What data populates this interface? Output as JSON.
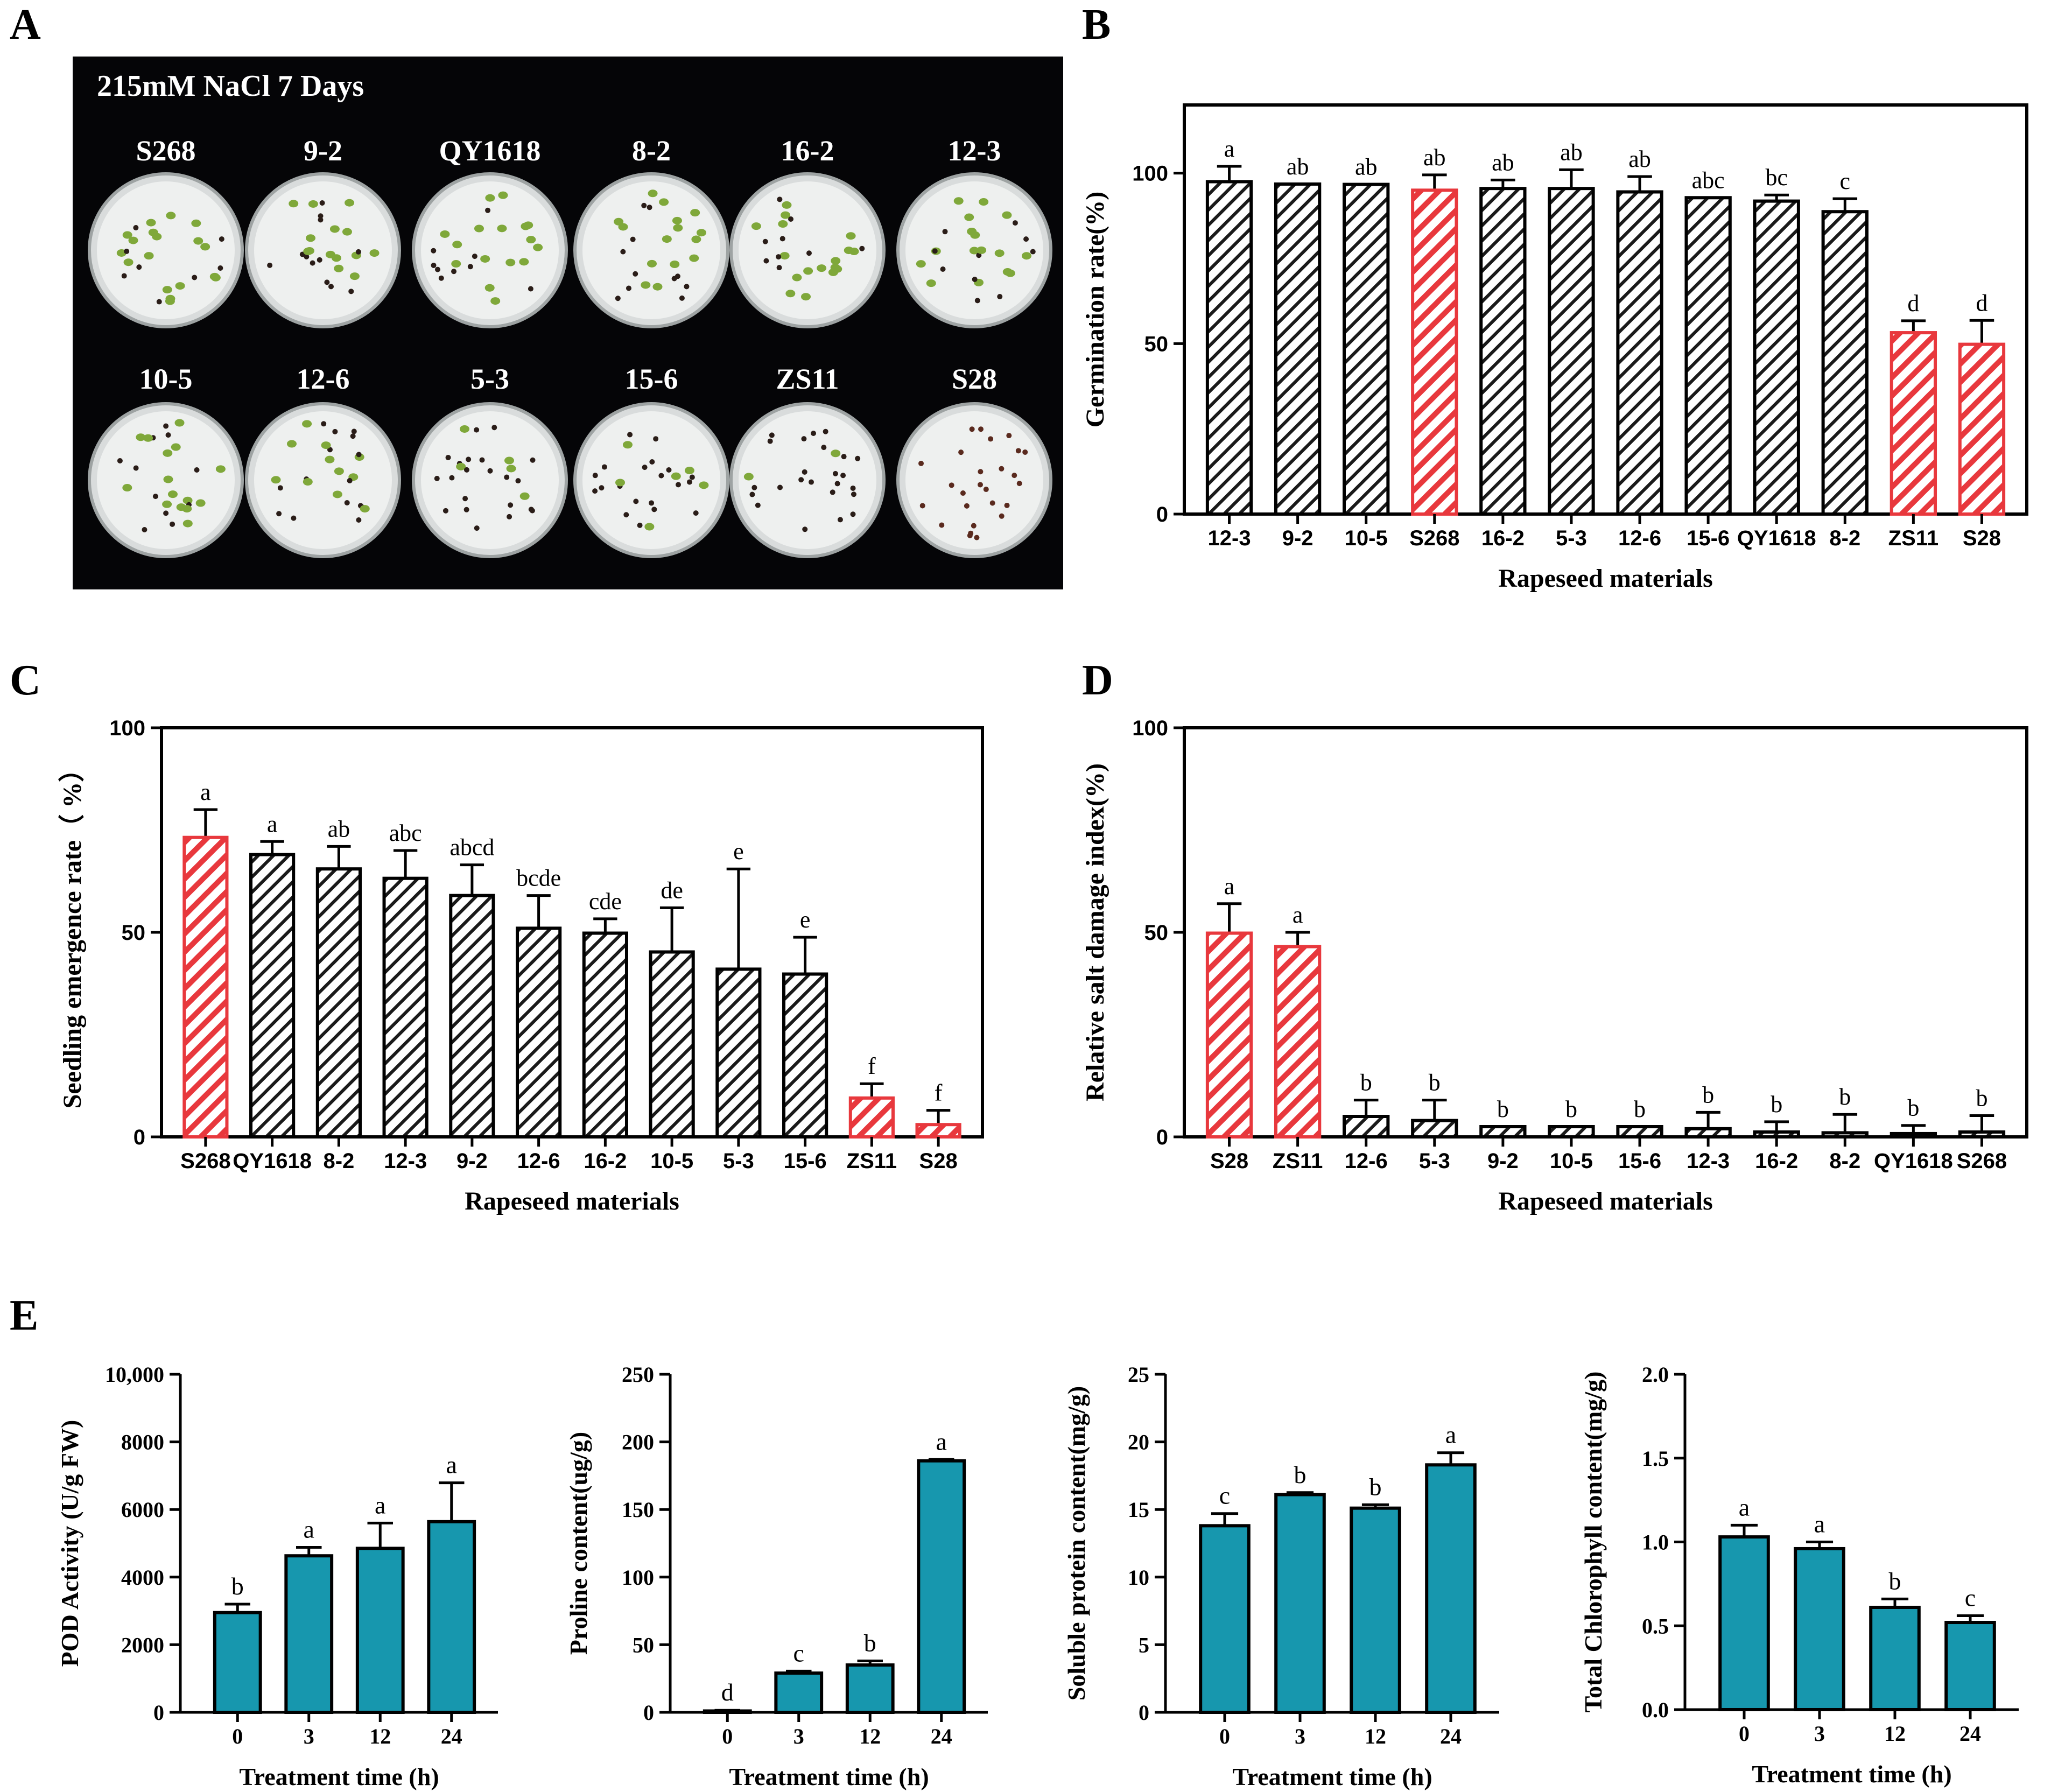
{
  "panel_letters": {
    "a": "A",
    "b": "B",
    "c": "C",
    "d": "D",
    "e": "E"
  },
  "photo": {
    "title": "215mM NaCl 7 Days",
    "row1_labels": [
      "S268",
      "9-2",
      "QY1618",
      "8-2",
      "16-2",
      "12-3"
    ],
    "row2_labels": [
      "10-5",
      "12-6",
      "5-3",
      "15-6",
      "ZS11",
      "S28"
    ],
    "row1_seed_green_fraction": [
      0.6,
      0.55,
      0.55,
      0.5,
      0.55,
      0.5
    ],
    "row2_seed_green_fraction": [
      0.5,
      0.3,
      0.2,
      0.2,
      0.08,
      0.0
    ]
  },
  "colors": {
    "hatch_red": "#e8383d",
    "hatch_black": "#1a1a1a",
    "bar_teal": "#1797ae",
    "photo_bg": "#050507",
    "dish_fill": "#eef0ef"
  },
  "chart_data": [
    {
      "panel": "B",
      "type": "bar",
      "categories": [
        "12-3",
        "9-2",
        "10-5",
        "S268",
        "16-2",
        "5-3",
        "12-6",
        "15-6",
        "QY1618",
        "8-2",
        "ZS11",
        "S28"
      ],
      "values": [
        97.5,
        96.8,
        96.7,
        95.0,
        95.5,
        95.5,
        94.5,
        92.8,
        91.8,
        88.7,
        53.2,
        49.8
      ],
      "errors": [
        4.5,
        0,
        0,
        4.5,
        2.5,
        5.5,
        4.5,
        0,
        1.8,
        3.8,
        3.5,
        7.0
      ],
      "letters": [
        "a",
        "ab",
        "ab",
        "ab",
        "ab",
        "ab",
        "ab",
        "abc",
        "bc",
        "c",
        "d",
        "d"
      ],
      "highlight": [
        false,
        false,
        false,
        true,
        false,
        false,
        false,
        false,
        false,
        false,
        true,
        true
      ],
      "ylabel": "Germination rate(%)",
      "xlabel": "Rapeseed materials",
      "ylim": [
        0,
        120
      ],
      "yticks": [
        0,
        50,
        100
      ]
    },
    {
      "panel": "C",
      "type": "bar",
      "categories": [
        "S268",
        "QY1618",
        "8-2",
        "12-3",
        "9-2",
        "12-6",
        "16-2",
        "10-5",
        "5-3",
        "15-6",
        "ZS11",
        "S28"
      ],
      "values": [
        73.2,
        69.0,
        65.5,
        63.2,
        59.0,
        51.0,
        49.8,
        45.2,
        41.0,
        39.8,
        9.5,
        3.0
      ],
      "errors": [
        6.8,
        3.2,
        5.5,
        6.8,
        7.5,
        8.0,
        3.5,
        10.8,
        24.5,
        9.0,
        3.5,
        3.5
      ],
      "letters": [
        "a",
        "a",
        "ab",
        "abc",
        "abcd",
        "bcde",
        "cde",
        "de",
        "e",
        "e",
        "f",
        "f"
      ],
      "highlight": [
        true,
        false,
        false,
        false,
        false,
        false,
        false,
        false,
        false,
        false,
        true,
        true
      ],
      "ylabel": "Seedling emergence rate（ %）",
      "xlabel": "Rapeseed materials",
      "ylim": [
        0,
        100
      ],
      "yticks": [
        0,
        50,
        100
      ]
    },
    {
      "panel": "D",
      "type": "bar",
      "categories": [
        "S28",
        "ZS11",
        "12-6",
        "5-3",
        "9-2",
        "10-5",
        "15-6",
        "12-3",
        "16-2",
        "8-2",
        "QY1618",
        "S268"
      ],
      "values": [
        49.8,
        46.5,
        5.0,
        4.0,
        2.5,
        2.5,
        2.5,
        2.0,
        1.2,
        1.0,
        0.8,
        1.2
      ],
      "errors": [
        7.2,
        3.5,
        4.0,
        5.0,
        0,
        0,
        0,
        4.0,
        2.5,
        4.5,
        2.0,
        4.0
      ],
      "letters": [
        "a",
        "a",
        "b",
        "b",
        "b",
        "b",
        "b",
        "b",
        "b",
        "b",
        "b",
        "b"
      ],
      "highlight": [
        true,
        true,
        false,
        false,
        false,
        false,
        false,
        false,
        false,
        false,
        false,
        false
      ],
      "ylabel": "Relative salt damage index(%)",
      "xlabel": "Rapeseed materials",
      "ylim": [
        0,
        100
      ],
      "yticks": [
        0,
        50,
        100
      ]
    },
    {
      "panel": "E1",
      "type": "bar",
      "categories": [
        "0",
        "3",
        "12",
        "24"
      ],
      "values": [
        2950,
        4630,
        4850,
        5640
      ],
      "errors": [
        250,
        250,
        750,
        1150
      ],
      "letters": [
        "b",
        "a",
        "a",
        "a"
      ],
      "ylabel": "POD Activity (U/g  FW)",
      "xlabel": "Treatment time (h)",
      "ylim": [
        0,
        10000
      ],
      "yticks": [
        0,
        2000,
        4000,
        6000,
        8000,
        10000
      ],
      "yticklabels": [
        "0",
        "2000",
        "4000",
        "6000",
        "8000",
        "10,000"
      ]
    },
    {
      "panel": "E2",
      "type": "bar",
      "categories": [
        "0",
        "3",
        "12",
        "24"
      ],
      "values": [
        1.0,
        29.0,
        35.0,
        186.0
      ],
      "errors": [
        0.5,
        1.5,
        3.0,
        1.0
      ],
      "letters": [
        "d",
        "c",
        "b",
        "a"
      ],
      "ylabel": "Proline content(ug/g)",
      "xlabel": "Treatment time (h)",
      "ylim": [
        0,
        250
      ],
      "yticks": [
        0,
        50,
        100,
        150,
        200,
        250
      ],
      "yticklabels": [
        "0",
        "50",
        "100",
        "150",
        "200",
        "250"
      ]
    },
    {
      "panel": "E3",
      "type": "bar",
      "categories": [
        "0",
        "3",
        "12",
        "24"
      ],
      "values": [
        13.8,
        16.1,
        15.1,
        18.3
      ],
      "errors": [
        0.9,
        0.15,
        0.25,
        0.9
      ],
      "letters": [
        "c",
        "b",
        "b",
        "a"
      ],
      "ylabel": "Soluble protein content(mg/g)",
      "xlabel": "Treatment time (h)",
      "ylim": [
        0,
        25
      ],
      "yticks": [
        0,
        5,
        10,
        15,
        20,
        25
      ],
      "yticklabels": [
        "0",
        "5",
        "10",
        "15",
        "20",
        "25"
      ]
    },
    {
      "panel": "E4",
      "type": "bar",
      "categories": [
        "0",
        "3",
        "12",
        "24"
      ],
      "values": [
        1.03,
        0.96,
        0.61,
        0.52
      ],
      "errors": [
        0.07,
        0.04,
        0.05,
        0.04
      ],
      "letters": [
        "a",
        "a",
        "b",
        "c"
      ],
      "ylabel": "Total Chlorophyll content(mg/g)",
      "xlabel": "Treatment time (h)",
      "ylim": [
        0,
        2.0
      ],
      "yticks": [
        0,
        0.5,
        1.0,
        1.5,
        2.0
      ],
      "yticklabels": [
        "0.0",
        "0.5",
        "1.0",
        "1.5",
        "2.0"
      ]
    }
  ]
}
